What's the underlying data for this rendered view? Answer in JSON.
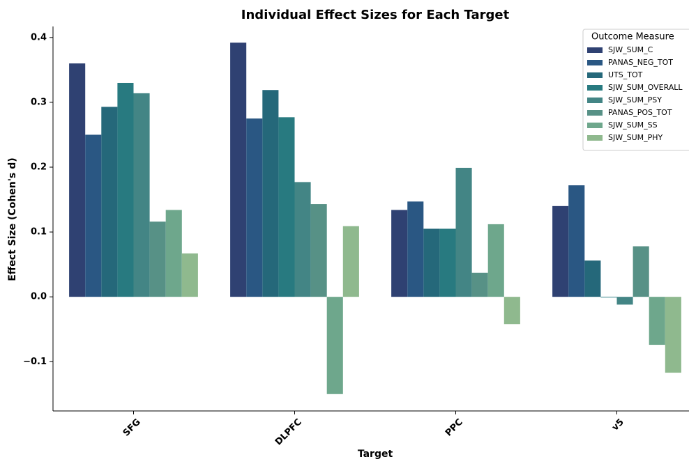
{
  "chart_data": {
    "type": "bar",
    "title": "Individual Effect Sizes for Each Target",
    "xlabel": "Target",
    "ylabel": "Effect Size (Cohen's d)",
    "categories": [
      "SFG",
      "DLPFC",
      "PPC",
      "v5"
    ],
    "legend_title": "Outcome Measure",
    "legend": "upper right",
    "series": [
      {
        "name": "SJW_SUM_C",
        "color": "#2f4172",
        "values": [
          0.36,
          0.392,
          0.134,
          0.14
        ]
      },
      {
        "name": "PANAS_NEG_TOT",
        "color": "#2a5783",
        "values": [
          0.25,
          0.275,
          0.147,
          0.172
        ]
      },
      {
        "name": "UTS_TOT",
        "color": "#25687a",
        "values": [
          0.293,
          0.319,
          0.105,
          0.056
        ]
      },
      {
        "name": "SJW_SUM_OVERALL",
        "color": "#287a80",
        "values": [
          0.33,
          0.277,
          0.105,
          -0.001
        ]
      },
      {
        "name": "SJW_SUM_PSY",
        "color": "#438585",
        "values": [
          0.314,
          0.177,
          0.199,
          -0.012
        ]
      },
      {
        "name": "PANAS_POS_TOT",
        "color": "#579186",
        "values": [
          0.116,
          0.143,
          0.037,
          0.078
        ]
      },
      {
        "name": "SJW_SUM_SS",
        "color": "#6ea78c",
        "values": [
          0.134,
          -0.15,
          0.112,
          -0.074
        ]
      },
      {
        "name": "SJW_SUM_PHY",
        "color": "#8fb98e",
        "values": [
          0.067,
          0.109,
          -0.042,
          -0.117
        ]
      }
    ],
    "ylim": [
      -0.176,
      0.417
    ],
    "yticks": [
      {
        "value": -0.1,
        "label": "−0.1"
      },
      {
        "value": 0,
        "label": "0.0"
      },
      0.1,
      0.2,
      0.3,
      0.4
    ]
  }
}
